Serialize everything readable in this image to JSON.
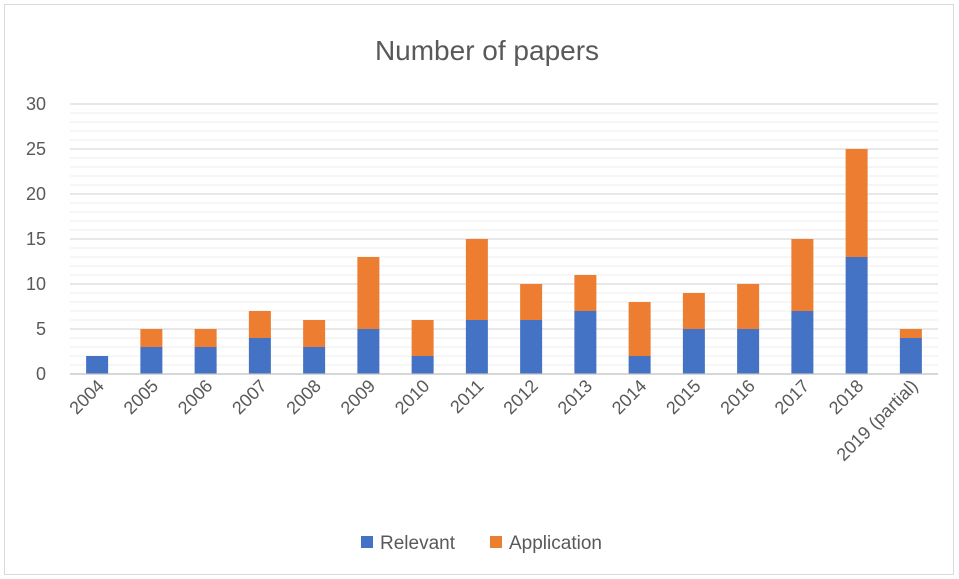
{
  "chart_data": {
    "type": "bar",
    "stacked": true,
    "title": "Number of papers",
    "xlabel": "",
    "ylabel": "",
    "ylim": [
      0,
      30
    ],
    "yticks": [
      0,
      5,
      10,
      15,
      20,
      25,
      30
    ],
    "grid": true,
    "legend_position": "bottom",
    "categories": [
      "2004",
      "2005",
      "2006",
      "2007",
      "2008",
      "2009",
      "2010",
      "2011",
      "2012",
      "2013",
      "2014",
      "2015",
      "2016",
      "2017",
      "2018",
      "2019 (partial)"
    ],
    "series": [
      {
        "name": "Relevant",
        "color": "#4472C4",
        "values": [
          2,
          3,
          3,
          4,
          3,
          5,
          2,
          6,
          6,
          7,
          2,
          5,
          5,
          7,
          13,
          4
        ]
      },
      {
        "name": "Application",
        "color": "#ED7D31",
        "values": [
          0,
          2,
          2,
          3,
          3,
          8,
          4,
          9,
          4,
          4,
          6,
          4,
          5,
          8,
          12,
          1
        ]
      }
    ]
  }
}
